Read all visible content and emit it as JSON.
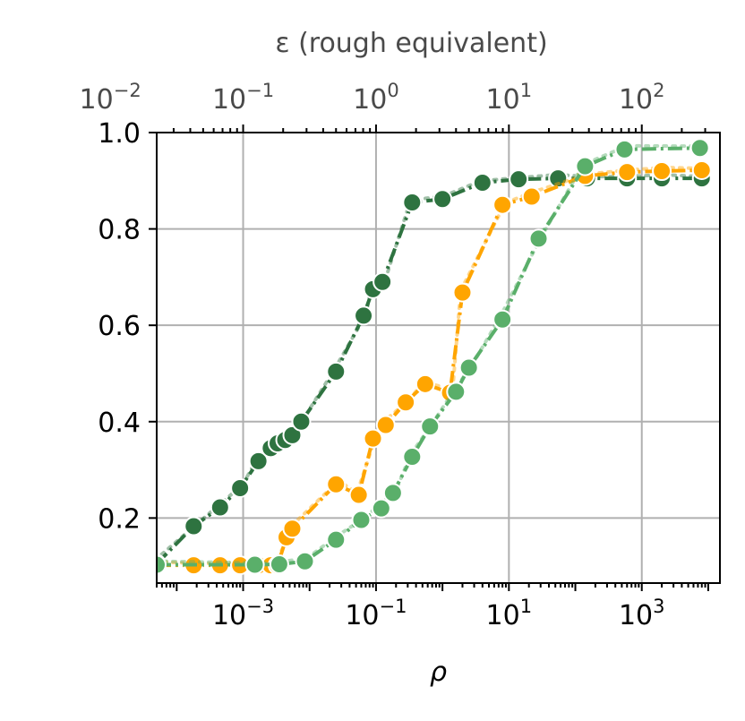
{
  "chart_data": {
    "type": "line",
    "xscale": "log",
    "xlabel": "ρ",
    "ylabel": "",
    "xlim": [
      5e-05,
      15000
    ],
    "ylim": [
      0.065,
      1.0
    ],
    "grid": true,
    "x_ticks": [
      {
        "base": "10",
        "exp": "−3",
        "value": 0.001
      },
      {
        "base": "10",
        "exp": "−1",
        "value": 0.1
      },
      {
        "base": "10",
        "exp": "1",
        "value": 10
      },
      {
        "base": "10",
        "exp": "3",
        "value": 1000
      }
    ],
    "y_ticks": [
      {
        "label": "0.2",
        "value": 0.2
      },
      {
        "label": "0.4",
        "value": 0.4
      },
      {
        "label": "0.6",
        "value": 0.6
      },
      {
        "label": "0.8",
        "value": 0.8
      },
      {
        "label": "1.0",
        "value": 1.0
      }
    ],
    "secondary_x_axis": {
      "label": "ε (rough equivalent)",
      "scale": "log",
      "ticks": [
        {
          "base": "10",
          "exp": "−2",
          "value": 0.01
        },
        {
          "base": "10",
          "exp": "−1",
          "value": 0.1
        },
        {
          "base": "10",
          "exp": "0",
          "value": 1
        },
        {
          "base": "10",
          "exp": "1",
          "value": 10
        },
        {
          "base": "10",
          "exp": "2",
          "value": 100
        }
      ]
    },
    "series": [
      {
        "color": "#2e7340",
        "marker": "circle",
        "line_style": "dashdot",
        "points": [
          [
            5e-05,
            0.105
          ],
          [
            0.00018,
            0.183
          ],
          [
            0.00045,
            0.222
          ],
          [
            0.0009,
            0.262
          ],
          [
            0.0017,
            0.318
          ],
          [
            0.0026,
            0.345
          ],
          [
            0.0033,
            0.355
          ],
          [
            0.0043,
            0.362
          ],
          [
            0.0055,
            0.372
          ],
          [
            0.0075,
            0.4
          ],
          [
            0.025,
            0.504
          ],
          [
            0.065,
            0.62
          ],
          [
            0.09,
            0.675
          ],
          [
            0.125,
            0.69
          ],
          [
            0.35,
            0.855
          ],
          [
            1.0,
            0.862
          ],
          [
            4.0,
            0.896
          ],
          [
            14,
            0.903
          ],
          [
            55,
            0.905
          ],
          [
            150,
            0.905
          ],
          [
            600,
            0.905
          ],
          [
            2000,
            0.905
          ],
          [
            8000,
            0.905
          ]
        ]
      },
      {
        "color": "#ffa500",
        "marker": "circle",
        "line_style": "dashdot",
        "points": [
          [
            5e-05,
            0.102
          ],
          [
            0.00018,
            0.102
          ],
          [
            0.00045,
            0.102
          ],
          [
            0.0009,
            0.102
          ],
          [
            0.0017,
            0.102
          ],
          [
            0.0026,
            0.102
          ],
          [
            0.0033,
            0.102
          ],
          [
            0.0045,
            0.16
          ],
          [
            0.0055,
            0.178
          ],
          [
            0.025,
            0.27
          ],
          [
            0.055,
            0.248
          ],
          [
            0.09,
            0.365
          ],
          [
            0.14,
            0.393
          ],
          [
            0.28,
            0.44
          ],
          [
            0.55,
            0.478
          ],
          [
            1.3,
            0.46
          ],
          [
            2.0,
            0.668
          ],
          [
            8.0,
            0.85
          ],
          [
            22,
            0.867
          ],
          [
            140,
            0.91
          ],
          [
            600,
            0.918
          ],
          [
            2000,
            0.92
          ],
          [
            8000,
            0.922
          ]
        ]
      },
      {
        "color": "#5aaf6a",
        "marker": "circle",
        "line_style": "dashdot",
        "points": [
          [
            5e-05,
            0.103
          ],
          [
            0.0015,
            0.103
          ],
          [
            0.0035,
            0.104
          ],
          [
            0.0085,
            0.11
          ],
          [
            0.025,
            0.155
          ],
          [
            0.06,
            0.196
          ],
          [
            0.12,
            0.22
          ],
          [
            0.18,
            0.252
          ],
          [
            0.35,
            0.327
          ],
          [
            0.65,
            0.39
          ],
          [
            1.6,
            0.462
          ],
          [
            2.5,
            0.512
          ],
          [
            8.0,
            0.612
          ],
          [
            28,
            0.78
          ],
          [
            140,
            0.93
          ],
          [
            550,
            0.965
          ],
          [
            7500,
            0.968
          ]
        ]
      }
    ]
  }
}
